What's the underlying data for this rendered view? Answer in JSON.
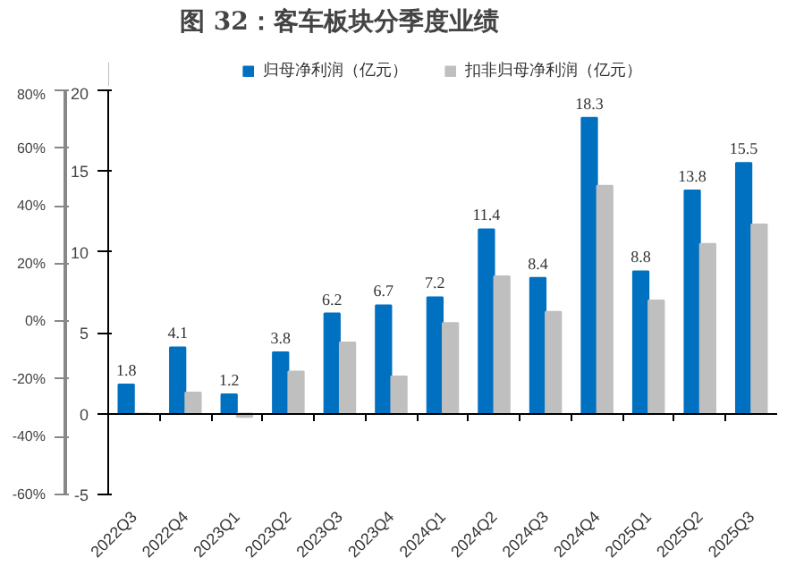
{
  "chart_data": {
    "type": "bar",
    "title": "图 32：客车板块分季度业绩",
    "categories": [
      "2022Q3",
      "2022Q4",
      "2023Q1",
      "2023Q2",
      "2023Q3",
      "2023Q4",
      "2024Q1",
      "2024Q2",
      "2024Q3",
      "2024Q4",
      "2025Q1",
      "2025Q2",
      "2025Q3"
    ],
    "series": [
      {
        "name": "归母净利润（亿元）",
        "color": "#0070c0",
        "values": [
          1.8,
          4.1,
          1.2,
          3.8,
          6.2,
          6.7,
          7.2,
          11.4,
          8.4,
          18.3,
          8.8,
          13.8,
          15.5
        ],
        "value_labels": [
          "1.8",
          "4.1",
          "1.2",
          "3.8",
          "6.2",
          "6.7",
          "7.2",
          "11.4",
          "8.4",
          "18.3",
          "8.8",
          "13.8",
          "15.5"
        ]
      },
      {
        "name": "扣非归母净利润（亿元）",
        "color": "#bfbfbf",
        "values": [
          0,
          1.3,
          -0.2,
          2.6,
          4.4,
          2.3,
          5.6,
          8.5,
          6.3,
          14.1,
          7.0,
          10.5,
          11.7
        ]
      }
    ],
    "ylim": [
      -5,
      20
    ],
    "yticks": [
      -5,
      0,
      5,
      10,
      15,
      20
    ],
    "y2lim": [
      -60,
      80
    ],
    "y2ticks": [
      {
        "value": -60,
        "label": "-60%"
      },
      {
        "value": -40,
        "label": "-40%"
      },
      {
        "value": -20,
        "label": "-20%"
      },
      {
        "value": 0,
        "label": "0%"
      },
      {
        "value": 20,
        "label": "20%"
      },
      {
        "value": 40,
        "label": "40%"
      },
      {
        "value": 60,
        "label": "60%"
      },
      {
        "value": 80,
        "label": "80%"
      }
    ],
    "legend": "top"
  }
}
